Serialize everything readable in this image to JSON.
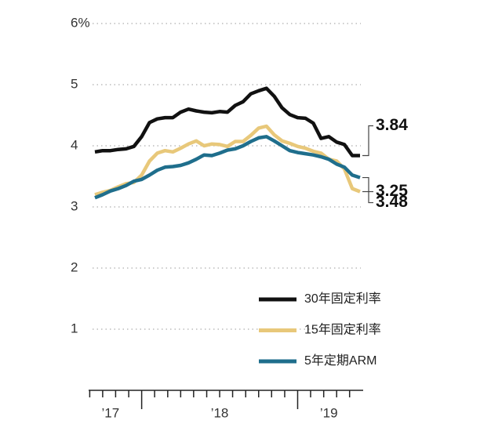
{
  "chart_data": {
    "type": "line",
    "x": [
      2017.7,
      2017.75,
      2017.8,
      2017.85,
      2017.9,
      2017.95,
      2018.0,
      2018.05,
      2018.1,
      2018.15,
      2018.2,
      2018.25,
      2018.3,
      2018.35,
      2018.4,
      2018.45,
      2018.5,
      2018.55,
      2018.6,
      2018.65,
      2018.7,
      2018.75,
      2018.8,
      2018.85,
      2018.9,
      2018.95,
      2019.0,
      2019.05,
      2019.1,
      2019.15,
      2019.2,
      2019.25,
      2019.3,
      2019.35,
      2019.4
    ],
    "series": [
      {
        "name": "30年固定利率",
        "color": "#111111",
        "values": [
          3.9,
          3.92,
          3.92,
          3.94,
          3.95,
          3.99,
          4.15,
          4.38,
          4.44,
          4.46,
          4.46,
          4.55,
          4.6,
          4.57,
          4.55,
          4.54,
          4.56,
          4.55,
          4.66,
          4.72,
          4.85,
          4.9,
          4.94,
          4.81,
          4.62,
          4.51,
          4.46,
          4.45,
          4.37,
          4.12,
          4.15,
          4.06,
          4.02,
          3.84,
          3.84
        ]
      },
      {
        "name": "15年固定利率",
        "color": "#e8c87a",
        "values": [
          3.2,
          3.24,
          3.27,
          3.33,
          3.38,
          3.4,
          3.52,
          3.75,
          3.88,
          3.92,
          3.9,
          3.96,
          4.03,
          4.08,
          4.0,
          4.03,
          4.02,
          3.99,
          4.07,
          4.07,
          4.17,
          4.29,
          4.32,
          4.18,
          4.08,
          4.04,
          3.99,
          3.96,
          3.91,
          3.88,
          3.78,
          3.75,
          3.62,
          3.3,
          3.25
        ]
      },
      {
        "name": "5年定期ARM",
        "color": "#1f6e8c",
        "values": [
          3.15,
          3.2,
          3.26,
          3.3,
          3.35,
          3.42,
          3.45,
          3.52,
          3.6,
          3.65,
          3.66,
          3.68,
          3.72,
          3.78,
          3.85,
          3.84,
          3.88,
          3.93,
          3.95,
          4.0,
          4.07,
          4.13,
          4.15,
          4.08,
          4.0,
          3.92,
          3.89,
          3.87,
          3.85,
          3.82,
          3.78,
          3.7,
          3.65,
          3.52,
          3.48
        ]
      }
    ],
    "xlim": [
      2017.66,
      2019.42
    ],
    "xticks": [
      2018,
      2019
    ],
    "xminorticks": [
      2017.667,
      2017.75,
      2017.833,
      2017.917,
      2018.083,
      2018.167,
      2018.25,
      2018.333,
      2018.417,
      2018.5,
      2018.583,
      2018.667,
      2018.75,
      2018.833,
      2018.917,
      2019.083,
      2019.167,
      2019.25,
      2019.333
    ],
    "year_labels": [
      {
        "value": 2017.8,
        "label": "’17"
      },
      {
        "value": 2018.5,
        "label": "’18"
      },
      {
        "value": 2019.2,
        "label": "’19"
      }
    ],
    "ylim": [
      0,
      6
    ],
    "yticks": [
      {
        "value": 6,
        "label": "6%"
      },
      5,
      4,
      3,
      2,
      1
    ],
    "grid": true
  }
}
